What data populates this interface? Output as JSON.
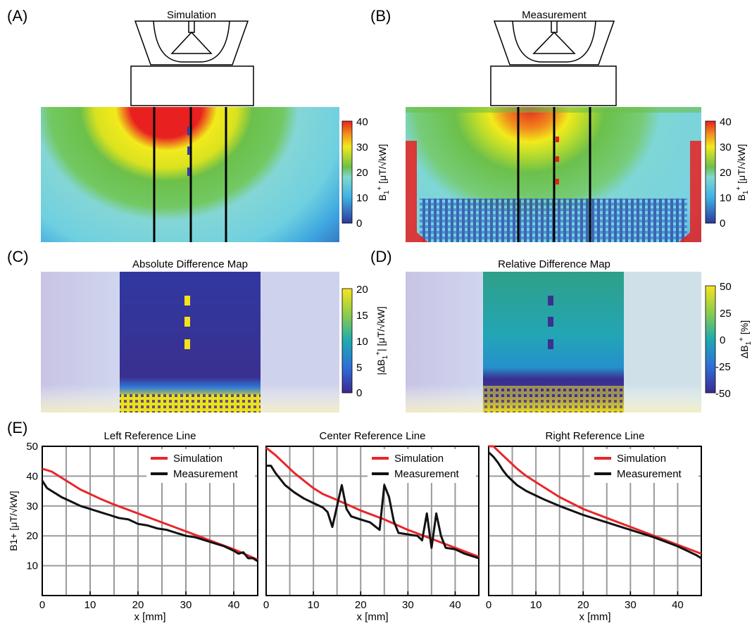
{
  "panels": {
    "a": {
      "letter": "(A)",
      "title": "Simulation"
    },
    "b": {
      "letter": "(B)",
      "title": "Measurement"
    },
    "c": {
      "letter": "(C)",
      "title": "Absolute Difference Map"
    },
    "d": {
      "letter": "(D)",
      "title": "Relative Difference Map"
    },
    "e": {
      "letter": "(E)"
    }
  },
  "colorbars": {
    "b1": {
      "ticks": [
        "40",
        "30",
        "20",
        "10",
        "0"
      ],
      "label_main": "B",
      "label_sub": "1",
      "label_sup": "+",
      "label_rest": " [μT/√kW]"
    },
    "abs": {
      "ticks": [
        "20",
        "15",
        "10",
        "5",
        "0"
      ],
      "label": "|ΔB",
      "label_sub": "1",
      "label_sup": "+",
      "label_rest": "| [μT/√kW]"
    },
    "rel": {
      "ticks": [
        "50",
        "25",
        "0",
        "-25",
        "-50"
      ],
      "label": "ΔB",
      "label_sub": "1",
      "label_sup": "+",
      "label_rest": " [%]"
    }
  },
  "colors": {
    "simulation": "#e8262b",
    "measurement": "#111111",
    "grid": "#9a9a9a"
  },
  "chart_data": [
    {
      "type": "line",
      "title": "Left Reference Line",
      "xlabel": "x [mm]",
      "ylabel": "B1+ [μT/√kW]",
      "xlim": [
        0,
        45
      ],
      "ylim": [
        0,
        50
      ],
      "xticks": [
        "0",
        "10",
        "20",
        "30",
        "40"
      ],
      "yticks": [
        "10",
        "20",
        "30",
        "40",
        "50"
      ],
      "grid": true,
      "legend": "top-right",
      "series": [
        {
          "name": "Simulation",
          "x": [
            0,
            2,
            4,
            6,
            8,
            10,
            12,
            15,
            20,
            25,
            30,
            35,
            40,
            45
          ],
          "y": [
            42.5,
            41.5,
            39.5,
            37.5,
            35.5,
            34,
            32.5,
            30.5,
            27.5,
            24.5,
            21.5,
            18.5,
            15.5,
            12
          ]
        },
        {
          "name": "Measurement",
          "x": [
            0,
            1,
            2,
            3,
            4,
            6,
            8,
            10,
            12,
            14,
            16,
            18,
            20,
            22,
            24,
            26,
            28,
            30,
            32,
            34,
            36,
            38,
            40,
            41,
            42,
            43,
            44,
            45
          ],
          "y": [
            38.5,
            36,
            35,
            34,
            33,
            31.5,
            30,
            29,
            28,
            27,
            26,
            25.5,
            24,
            23.5,
            22.5,
            22,
            21,
            20,
            19.5,
            18.5,
            17.5,
            16.5,
            15,
            14,
            14.5,
            12.5,
            12.5,
            11.5
          ]
        }
      ]
    },
    {
      "type": "line",
      "title": "Center Reference Line",
      "xlabel": "x [mm]",
      "ylabel": "",
      "xlim": [
        0,
        45
      ],
      "ylim": [
        0,
        50
      ],
      "xticks": [
        "0",
        "10",
        "20",
        "30",
        "40"
      ],
      "yticks": [],
      "grid": true,
      "legend": "top-right",
      "series": [
        {
          "name": "Simulation",
          "x": [
            0,
            2,
            4,
            6,
            8,
            10,
            12,
            15,
            20,
            25,
            30,
            35,
            40,
            45
          ],
          "y": [
            49.5,
            47,
            44,
            41,
            38.5,
            36,
            34,
            32,
            28.5,
            25.5,
            22,
            19,
            16,
            13
          ]
        },
        {
          "name": "Measurement",
          "x": [
            0,
            1,
            2,
            3,
            4,
            6,
            8,
            10,
            12,
            13,
            14,
            15,
            16,
            17,
            18,
            20,
            22,
            24,
            25,
            26,
            27,
            28,
            30,
            32,
            33,
            34,
            35,
            36,
            37,
            38,
            40,
            42,
            45
          ],
          "y": [
            43.5,
            43.5,
            41,
            39,
            37,
            34.5,
            32.5,
            31,
            29.5,
            28,
            23,
            30,
            37,
            29,
            26.5,
            25.5,
            24.5,
            22,
            37,
            33,
            25,
            21,
            20.5,
            20,
            18.5,
            27.5,
            16,
            27.5,
            20,
            16,
            15.5,
            14,
            12.5
          ]
        }
      ]
    },
    {
      "type": "line",
      "title": "Right Reference Line",
      "xlabel": "x [mm]",
      "ylabel": "",
      "xlim": [
        0,
        45
      ],
      "ylim": [
        0,
        50
      ],
      "xticks": [
        "0",
        "10",
        "20",
        "30",
        "40"
      ],
      "yticks": [],
      "grid": true,
      "legend": "top-right",
      "series": [
        {
          "name": "Simulation",
          "x": [
            0,
            1,
            2,
            4,
            6,
            8,
            10,
            12,
            15,
            20,
            25,
            30,
            35,
            40,
            45
          ],
          "y": [
            50,
            50,
            48.5,
            45.5,
            42.5,
            40,
            38,
            36,
            33,
            29,
            26,
            23,
            20,
            17,
            14
          ]
        },
        {
          "name": "Measurement",
          "x": [
            0,
            1,
            2,
            3,
            4,
            5,
            6,
            8,
            10,
            12,
            15,
            20,
            25,
            30,
            35,
            40,
            42,
            44,
            45
          ],
          "y": [
            48,
            46.5,
            44.5,
            42,
            40,
            38.5,
            37,
            35,
            33.5,
            32,
            30,
            27,
            24.5,
            22,
            19.5,
            16.5,
            15,
            13.5,
            12.5
          ]
        }
      ]
    }
  ]
}
